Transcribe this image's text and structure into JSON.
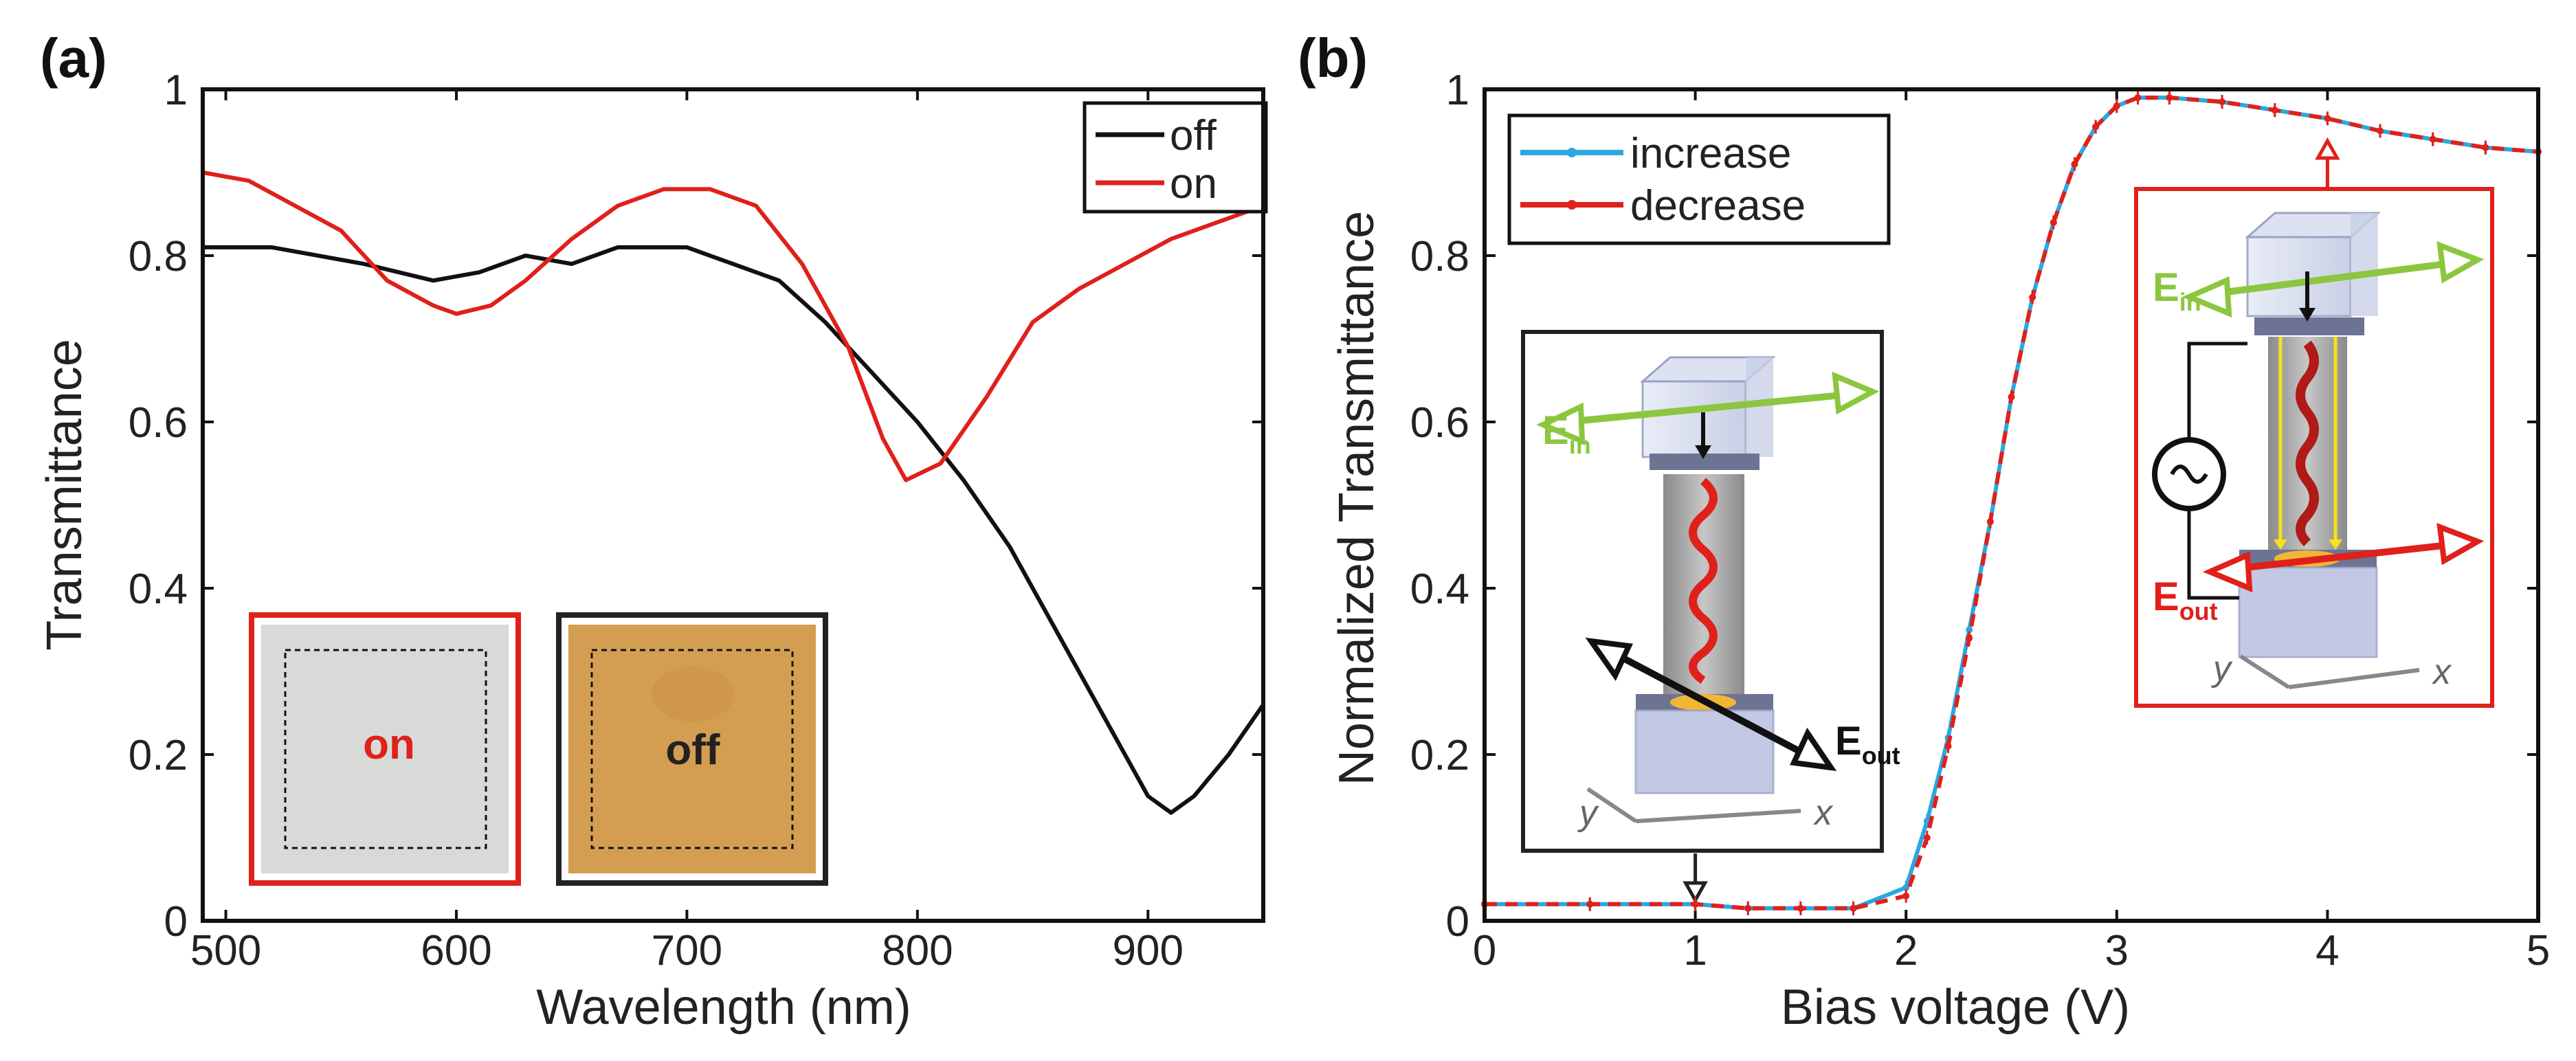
{
  "chart_data": [
    {
      "panel": "(a)",
      "type": "line",
      "xlabel": "Wavelength (nm)",
      "ylabel": "Transmittance",
      "xlim": [
        490,
        950
      ],
      "ylim": [
        0,
        1
      ],
      "xticks": [
        "500",
        "600",
        "700",
        "800",
        "900"
      ],
      "yticks": [
        "0",
        "0.2",
        "0.4",
        "0.6",
        "0.8",
        "1"
      ],
      "legend_position": "top-right",
      "series": [
        {
          "name": "off",
          "color": "#111111",
          "x": [
            490,
            520,
            560,
            590,
            610,
            630,
            650,
            670,
            700,
            720,
            740,
            760,
            780,
            800,
            820,
            840,
            860,
            880,
            900,
            910,
            920,
            935,
            950
          ],
          "y": [
            0.81,
            0.81,
            0.79,
            0.77,
            0.78,
            0.8,
            0.79,
            0.81,
            0.81,
            0.79,
            0.77,
            0.72,
            0.66,
            0.6,
            0.53,
            0.45,
            0.35,
            0.25,
            0.15,
            0.13,
            0.15,
            0.2,
            0.26
          ]
        },
        {
          "name": "on",
          "color": "#e0201b",
          "x": [
            490,
            510,
            530,
            550,
            570,
            590,
            600,
            615,
            630,
            650,
            670,
            690,
            710,
            730,
            750,
            770,
            785,
            795,
            810,
            830,
            850,
            870,
            890,
            910,
            930,
            950
          ],
          "y": [
            0.9,
            0.89,
            0.86,
            0.83,
            0.77,
            0.74,
            0.73,
            0.74,
            0.77,
            0.82,
            0.86,
            0.88,
            0.88,
            0.86,
            0.79,
            0.69,
            0.58,
            0.53,
            0.55,
            0.63,
            0.72,
            0.76,
            0.79,
            0.82,
            0.84,
            0.86
          ]
        }
      ],
      "insets": [
        {
          "label": "on",
          "label_color": "#e0201b",
          "frame_color": "#e0201b",
          "fill": "#d7dad7"
        },
        {
          "label": "off",
          "label_color": "#222222",
          "frame_color": "#222222",
          "fill": "#d49e52"
        }
      ]
    },
    {
      "panel": "(b)",
      "type": "line",
      "xlabel": "Bias voltage (V)",
      "ylabel": "Normalized Transmittance",
      "xlim": [
        0,
        5
      ],
      "ylim": [
        0,
        1
      ],
      "xticks": [
        "0",
        "1",
        "2",
        "3",
        "4",
        "5"
      ],
      "yticks": [
        "0",
        "0.2",
        "0.4",
        "0.6",
        "0.8",
        "1"
      ],
      "legend_position": "top-left",
      "series": [
        {
          "name": "increase",
          "color": "#29a8e0",
          "style": "solid",
          "x": [
            0,
            0.5,
            1,
            1.25,
            1.5,
            1.75,
            2,
            2.1,
            2.2,
            2.3,
            2.4,
            2.5,
            2.6,
            2.7,
            2.8,
            2.9,
            3,
            3.1,
            3.25,
            3.5,
            3.75,
            4,
            4.25,
            4.5,
            4.75,
            5
          ],
          "y": [
            0.02,
            0.02,
            0.02,
            0.015,
            0.015,
            0.015,
            0.04,
            0.12,
            0.22,
            0.35,
            0.48,
            0.63,
            0.75,
            0.84,
            0.91,
            0.955,
            0.98,
            0.99,
            0.99,
            0.985,
            0.975,
            0.965,
            0.95,
            0.94,
            0.93,
            0.925
          ]
        },
        {
          "name": "decrease",
          "color": "#e0201b",
          "style": "dashed",
          "x": [
            0,
            0.5,
            1,
            1.25,
            1.5,
            1.75,
            2,
            2.1,
            2.2,
            2.3,
            2.4,
            2.5,
            2.6,
            2.7,
            2.8,
            2.9,
            3,
            3.1,
            3.25,
            3.5,
            3.75,
            4,
            4.25,
            4.5,
            4.75,
            5
          ],
          "y": [
            0.02,
            0.02,
            0.02,
            0.015,
            0.015,
            0.015,
            0.03,
            0.1,
            0.21,
            0.34,
            0.48,
            0.63,
            0.75,
            0.84,
            0.91,
            0.955,
            0.98,
            0.99,
            0.99,
            0.985,
            0.975,
            0.965,
            0.95,
            0.94,
            0.93,
            0.925
          ]
        }
      ],
      "insets": [
        {
          "E_in_base": "E",
          "E_in_sub": "in",
          "E_out_base": "E",
          "E_out_sub": "out",
          "axis_y": "y",
          "axis_x": "x",
          "frame_color": "#222222",
          "arrow_color": "#222222",
          "points_at_V": 1
        },
        {
          "E_in_base": "E",
          "E_in_sub": "in",
          "E_out_base": "E",
          "E_out_sub": "out",
          "axis_y": "y",
          "axis_x": "x",
          "frame_color": "#e0201b",
          "arrow_color": "#e0201b",
          "points_at_V": 4
        }
      ]
    }
  ]
}
